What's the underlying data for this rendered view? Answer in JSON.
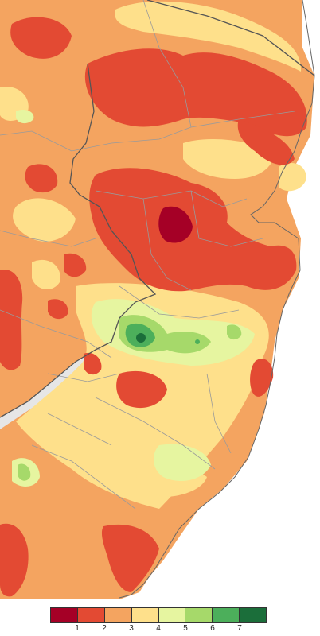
{
  "legend": {
    "colors": [
      "#a50026",
      "#e34a33",
      "#f4a460",
      "#fee08b",
      "#e6f5a0",
      "#a6d96a",
      "#4caf5b",
      "#1b6e3a"
    ],
    "ticks": [
      "1",
      "2",
      "3",
      "4",
      "5",
      "6",
      "7"
    ]
  },
  "map": {
    "ocean_color": "#ffffff",
    "river_color": "#d0d0d0",
    "boundary_color": "#555555",
    "county_line_color": "#9a9a9a",
    "base_color": "#f4a460"
  }
}
